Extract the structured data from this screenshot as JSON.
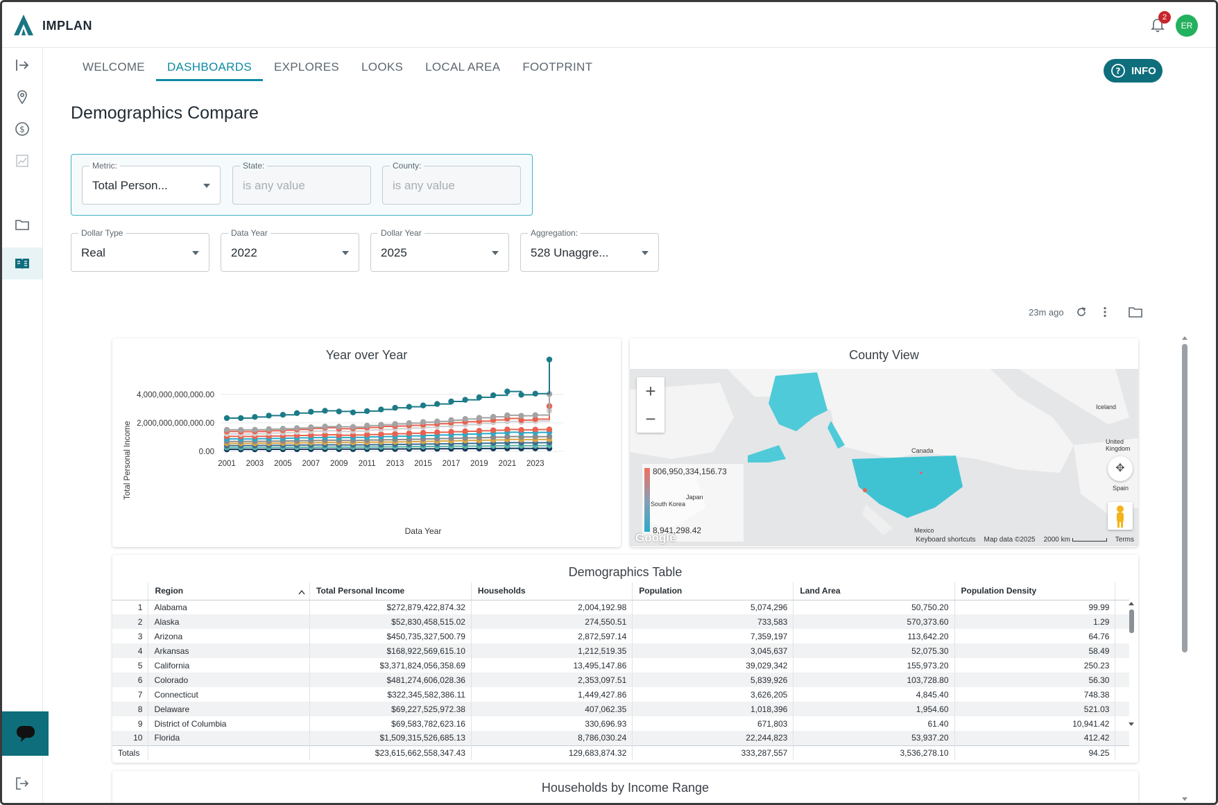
{
  "app": {
    "brand": "IMPLAN",
    "notifications": "2",
    "avatar": "ER"
  },
  "tabs": [
    "WELCOME",
    "DASHBOARDS",
    "EXPLORES",
    "LOOKS",
    "LOCAL AREA",
    "FOOTPRINT"
  ],
  "info_label": "INFO",
  "page_title": "Demographics Compare",
  "filters": {
    "metric": {
      "label": "Metric:",
      "value": "Total Person..."
    },
    "state": {
      "label": "State:",
      "placeholder": "is any value"
    },
    "county": {
      "label": "County:",
      "placeholder": "is any value"
    },
    "dollar_type": {
      "label": "Dollar Type",
      "value": "Real"
    },
    "data_year": {
      "label": "Data Year",
      "value": "2022"
    },
    "dollar_year": {
      "label": "Dollar Year",
      "value": "2025"
    },
    "aggregation": {
      "label": "Aggregation:",
      "value": "528 Unaggre..."
    }
  },
  "dashboard_meta": {
    "updated": "23m ago"
  },
  "yoy": {
    "title": "Year over Year",
    "xlabel": "Data Year",
    "ylabel": "Total Personal Income"
  },
  "chart_data": {
    "type": "line",
    "title": "Year over Year",
    "xlabel": "Data Year",
    "ylabel": "Total Personal Income",
    "x_ticks": [
      "2001",
      "2003",
      "2005",
      "2007",
      "2009",
      "2011",
      "2013",
      "2015",
      "2017",
      "2019",
      "2021",
      "2023"
    ],
    "y_ticks": [
      "4,000,000,000,000.00",
      "2,000,000,000,000.00",
      "0.00"
    ],
    "ylim": [
      0,
      5500000000000
    ],
    "x": [
      2001,
      2002,
      2003,
      2004,
      2005,
      2006,
      2007,
      2008,
      2009,
      2010,
      2011,
      2012,
      2013,
      2014,
      2015,
      2016,
      2017,
      2018,
      2019,
      2020,
      2021,
      2022,
      2023,
      2024
    ],
    "series": [
      {
        "color": "#1c7b87",
        "values": [
          2000000000000,
          2000000000000,
          2070000000000,
          2150000000000,
          2200000000000,
          2300000000000,
          2380000000000,
          2440000000000,
          2400000000000,
          2340000000000,
          2420000000000,
          2520000000000,
          2620000000000,
          2680000000000,
          2760000000000,
          2850000000000,
          3000000000000,
          3100000000000,
          3250000000000,
          3370000000000,
          3600000000000,
          3400000000000,
          3470000000000,
          5520000000000
        ]
      },
      {
        "color": "#a3a3a3",
        "values": [
          1300000000000,
          1290000000000,
          1300000000000,
          1340000000000,
          1360000000000,
          1400000000000,
          1450000000000,
          1490000000000,
          1480000000000,
          1470000000000,
          1550000000000,
          1600000000000,
          1650000000000,
          1700000000000,
          1760000000000,
          1800000000000,
          1880000000000,
          1950000000000,
          2020000000000,
          2080000000000,
          2170000000000,
          2140000000000,
          2180000000000,
          3450000000000
        ]
      },
      {
        "color": "#e8624f",
        "values": [
          1200000000000,
          1180000000000,
          1200000000000,
          1240000000000,
          1270000000000,
          1320000000000,
          1380000000000,
          1420000000000,
          1360000000000,
          1380000000000,
          1440000000000,
          1500000000000,
          1520000000000,
          1560000000000,
          1600000000000,
          1660000000000,
          1730000000000,
          1780000000000,
          1820000000000,
          1890000000000,
          1980000000000,
          1880000000000,
          1940000000000,
          2720000000000
        ]
      },
      {
        "color": "#cfcfcf",
        "values": [
          1050000000000,
          1040000000000,
          1060000000000,
          1100000000000,
          1120000000000,
          1170000000000,
          1220000000000,
          1240000000000,
          1200000000000,
          1220000000000,
          1280000000000,
          1320000000000,
          1360000000000,
          1400000000000,
          1450000000000,
          1500000000000,
          1550000000000,
          1610000000000,
          1680000000000,
          1740000000000,
          1800000000000,
          1760000000000,
          1820000000000,
          2450000000000
        ]
      },
      {
        "color": "#e8624f",
        "values": [
          900000000000,
          895000000000,
          905000000000,
          920000000000,
          935000000000,
          960000000000,
          980000000000,
          1000000000000,
          970000000000,
          985000000000,
          1010000000000,
          1040000000000,
          1060000000000,
          1090000000000,
          1120000000000,
          1150000000000,
          1180000000000,
          1210000000000,
          1240000000000,
          1270000000000,
          1320000000000,
          1290000000000,
          1310000000000,
          1320000000000
        ]
      },
      {
        "color": "#2aa9c9",
        "values": [
          750000000000,
          745000000000,
          760000000000,
          775000000000,
          790000000000,
          810000000000,
          830000000000,
          850000000000,
          830000000000,
          840000000000,
          870000000000,
          890000000000,
          910000000000,
          930000000000,
          960000000000,
          985000000000,
          1010000000000,
          1040000000000,
          1070000000000,
          1100000000000,
          1150000000000,
          1120000000000,
          1140000000000,
          1160000000000
        ]
      },
      {
        "color": "#8a8a8a",
        "values": [
          600000000000,
          598000000000,
          605000000000,
          615000000000,
          625000000000,
          640000000000,
          655000000000,
          670000000000,
          655000000000,
          660000000000,
          680000000000,
          700000000000,
          715000000000,
          730000000000,
          750000000000,
          770000000000,
          790000000000,
          810000000000,
          830000000000,
          855000000000,
          890000000000,
          870000000000,
          885000000000,
          900000000000
        ]
      },
      {
        "color": "#d9a441",
        "values": [
          480000000000,
          478000000000,
          485000000000,
          495000000000,
          505000000000,
          515000000000,
          525000000000,
          540000000000,
          530000000000,
          535000000000,
          550000000000,
          565000000000,
          575000000000,
          590000000000,
          605000000000,
          620000000000,
          640000000000,
          655000000000,
          670000000000,
          690000000000,
          720000000000,
          705000000000,
          715000000000,
          730000000000
        ]
      },
      {
        "color": "#3c6e8f",
        "values": [
          350000000000,
          350000000000,
          355000000000,
          362000000000,
          370000000000,
          378000000000,
          386000000000,
          395000000000,
          388000000000,
          392000000000,
          402000000000,
          412000000000,
          420000000000,
          430000000000,
          442000000000,
          452000000000,
          465000000000,
          477000000000,
          490000000000,
          503000000000,
          525000000000,
          515000000000,
          522000000000,
          535000000000
        ]
      },
      {
        "color": "#56b3a6",
        "values": [
          230000000000,
          230000000000,
          234000000000,
          239000000000,
          244000000000,
          250000000000,
          255000000000,
          261000000000,
          257000000000,
          259000000000,
          266000000000,
          272000000000,
          278000000000,
          284000000000,
          291000000000,
          298000000000,
          306000000000,
          314000000000,
          322000000000,
          331000000000,
          345000000000,
          338000000000,
          343000000000,
          351000000000
        ]
      },
      {
        "color": "#14365c",
        "values": [
          120000000000,
          120000000000,
          122000000000,
          125000000000,
          128000000000,
          131000000000,
          134000000000,
          137000000000,
          135000000000,
          136000000000,
          140000000000,
          143000000000,
          146000000000,
          149000000000,
          153000000000,
          157000000000,
          161000000000,
          165000000000,
          170000000000,
          175000000000,
          182000000000,
          178000000000,
          181000000000,
          185000000000
        ]
      }
    ]
  },
  "county_view": {
    "title": "County View",
    "legend_max": "806,950,334,156.73",
    "legend_min": "8,941,298.42",
    "labels": [
      "Iceland",
      "Canada",
      "United Kingdom",
      "Spain",
      "Japan",
      "South Korea",
      "Mexico"
    ],
    "footer": [
      "Keyboard shortcuts",
      "Map data ©2025",
      "2000 km",
      "Terms"
    ],
    "google": "Google"
  },
  "table": {
    "title": "Demographics Table",
    "columns": [
      "Region",
      "Total Personal Income",
      "Households",
      "Population",
      "Land Area",
      "Population Density"
    ],
    "rows": [
      [
        "1",
        "Alabama",
        "$272,879,422,874.32",
        "2,004,192.98",
        "5,074,296",
        "50,750.20",
        "99.99"
      ],
      [
        "2",
        "Alaska",
        "$52,830,458,515.02",
        "274,550.51",
        "733,583",
        "570,373.60",
        "1.29"
      ],
      [
        "3",
        "Arizona",
        "$450,735,327,500.79",
        "2,872,597.14",
        "7,359,197",
        "113,642.20",
        "64.76"
      ],
      [
        "4",
        "Arkansas",
        "$168,922,569,615.10",
        "1,212,519.35",
        "3,045,637",
        "52,075.30",
        "58.49"
      ],
      [
        "5",
        "California",
        "$3,371,824,056,358.69",
        "13,495,147.86",
        "39,029,342",
        "155,973.20",
        "250.23"
      ],
      [
        "6",
        "Colorado",
        "$481,274,606,028.36",
        "2,353,097.51",
        "5,839,926",
        "103,728.80",
        "56.30"
      ],
      [
        "7",
        "Connecticut",
        "$322,345,582,386.11",
        "1,449,427.86",
        "3,626,205",
        "4,845.40",
        "748.38"
      ],
      [
        "8",
        "Delaware",
        "$69,227,525,972.38",
        "407,062.35",
        "1,018,396",
        "1,954.60",
        "521.03"
      ],
      [
        "9",
        "District of Columbia",
        "$69,583,782,623.16",
        "330,696.93",
        "671,803",
        "61.40",
        "10,941.42"
      ],
      [
        "10",
        "Florida",
        "$1,509,315,526,685.13",
        "8,786,030.24",
        "22,244,823",
        "53,937.20",
        "412.42"
      ]
    ],
    "totals": [
      "Totals",
      "",
      "$23,615,662,558,347.43",
      "129,683,874.32",
      "333,287,557",
      "3,536,278.10",
      "94.25"
    ]
  },
  "income_range": {
    "title": "Households by Income Range"
  }
}
